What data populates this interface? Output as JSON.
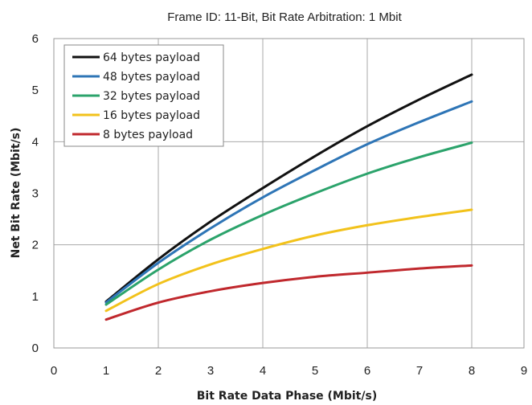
{
  "chart_data": {
    "type": "line",
    "title": "Frame ID: 11-Bit, Bit Rate Arbitration: 1 Mbit",
    "xlabel": "Bit Rate Data Phase (Mbit/s)",
    "ylabel": "Net Bit Rate (Mbit/s)",
    "xlim": [
      0,
      9
    ],
    "ylim": [
      0,
      6
    ],
    "xticks": [
      "0",
      "1",
      "2",
      "3",
      "4",
      "5",
      "6",
      "7",
      "8",
      "9"
    ],
    "yticks": [
      "0",
      "1",
      "2",
      "3",
      "4",
      "5",
      "6"
    ],
    "grid": "major lines at even x and y values",
    "legend_position": "top-left",
    "x": [
      1,
      2,
      3,
      4,
      5,
      6,
      7,
      8
    ],
    "series": [
      {
        "name": "64 bytes payload",
        "color": "#111111",
        "values": [
          0.9,
          1.72,
          2.45,
          3.1,
          3.72,
          4.3,
          4.82,
          5.3
        ]
      },
      {
        "name": "48 bytes payload",
        "color": "#2e75b6",
        "values": [
          0.88,
          1.65,
          2.32,
          2.92,
          3.45,
          3.95,
          4.38,
          4.78
        ]
      },
      {
        "name": "32 bytes payload",
        "color": "#2ba36b",
        "values": [
          0.84,
          1.52,
          2.1,
          2.58,
          3.0,
          3.38,
          3.7,
          3.98
        ]
      },
      {
        "name": "16 bytes payload",
        "color": "#f2c21b",
        "values": [
          0.72,
          1.24,
          1.62,
          1.92,
          2.18,
          2.38,
          2.54,
          2.68
        ]
      },
      {
        "name": "8 bytes payload",
        "color": "#c0282d",
        "values": [
          0.55,
          0.88,
          1.1,
          1.26,
          1.38,
          1.46,
          1.54,
          1.6
        ]
      }
    ]
  }
}
